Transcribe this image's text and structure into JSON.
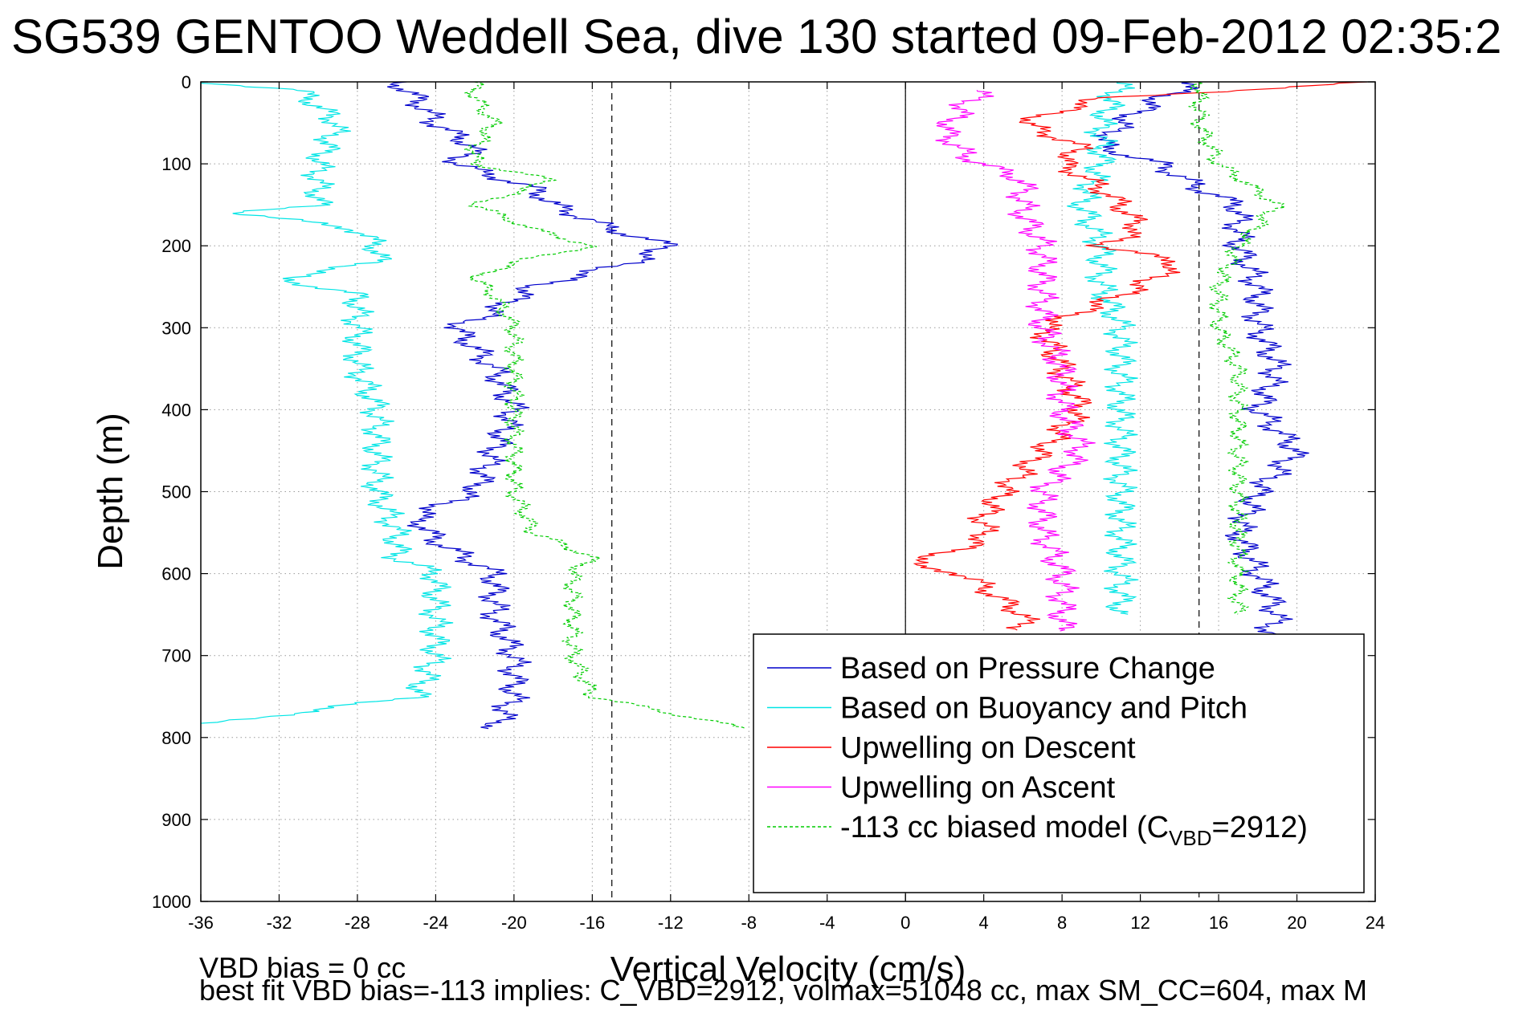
{
  "chart_data": {
    "type": "line",
    "title": "SG539 GENTOO Weddell Sea, dive 130 started 09-Feb-2012 02:35:2",
    "xlabel": "Vertical Velocity (cm/s)",
    "ylabel": "Depth (m)",
    "xlim": [
      -36,
      24
    ],
    "ylim": [
      0,
      1000
    ],
    "y_reversed": true,
    "grid": true,
    "xticks": [
      "-36",
      "-32",
      "-28",
      "-24",
      "-20",
      "-16",
      "-12",
      "-8",
      "-4",
      "0",
      "4",
      "8",
      "12",
      "16",
      "20",
      "24"
    ],
    "yticks": [
      "0",
      "100",
      "200",
      "300",
      "400",
      "500",
      "600",
      "700",
      "800",
      "900",
      "1000"
    ],
    "reference_lines": {
      "vertical_solid": 0,
      "vertical_dashed": [
        -15,
        15
      ]
    },
    "legend_position": "lower-right",
    "legend": [
      {
        "label": "Based on Pressure Change",
        "color": "#0000cc",
        "dashed": false
      },
      {
        "label": "Based on Buoyancy and Pitch",
        "color": "#00e5e5",
        "dashed": false
      },
      {
        "label": "Upwelling on Descent",
        "color": "#ff0000",
        "dashed": false
      },
      {
        "label": "Upwelling on Ascent",
        "color": "#ff00ff",
        "dashed": false
      },
      {
        "label_main": "-113 cc biased model (C",
        "label_sub": "VBD",
        "label_tail": "=2912)",
        "color": "#00cc00",
        "dashed": true
      }
    ],
    "series": [
      {
        "name": "Based on Pressure Change",
        "color": "#0000cc",
        "profiles": [
          {
            "depth": [
              0,
              20,
              50,
              80,
              100,
              130,
              150,
              180,
              200,
              220,
              250,
              280,
              300,
              350,
              400,
              450,
              500,
              530,
              560,
              600,
              650,
              700,
              750,
              790
            ],
            "x": [
              -26,
              -25,
              -24,
              -22,
              -23,
              -19,
              -18,
              -15,
              -12,
              -14,
              -19,
              -21,
              -23,
              -21,
              -20,
              -21,
              -22,
              -25,
              -24,
              -21,
              -21,
              -20,
              -20,
              -21
            ]
          },
          {
            "depth": [
              0,
              20,
              50,
              80,
              100,
              130,
              150,
              200,
              250,
              300,
              350,
              400,
              450,
              500,
              550,
              600,
              650,
              700
            ],
            "x": [
              15,
              13,
              11,
              10,
              13,
              15,
              17,
              17,
              18,
              18,
              19,
              18,
              20,
              18,
              17,
              18,
              19,
              18
            ]
          }
        ]
      },
      {
        "name": "Based on Buoyancy and Pitch",
        "color": "#00e5e5",
        "profiles": [
          {
            "depth": [
              0,
              10,
              50,
              100,
              150,
              160,
              180,
              200,
              220,
              240,
              260,
              300,
              350,
              400,
              450,
              500,
              550,
              580,
              600,
              650,
              700,
              750,
              785
            ],
            "x": [
              -36,
              -31,
              -29,
              -30,
              -30,
              -34,
              -28,
              -27,
              -27,
              -32,
              -28,
              -28,
              -28,
              -27,
              -27,
              -27,
              -26,
              -26,
              -24,
              -24,
              -24,
              -25,
              -36
            ]
          },
          {
            "depth": [
              0,
              50,
              100,
              150,
              200,
              250,
              300,
              350,
              400,
              450,
              500,
              550,
              600,
              650
            ],
            "x": [
              11,
              10,
              10,
              9,
              10,
              10,
              11,
              11,
              11,
              11,
              11,
              11,
              11,
              11
            ]
          }
        ]
      },
      {
        "name": "Upwelling on Descent",
        "color": "#ff0000",
        "profiles": [
          {
            "depth": [
              0,
              20,
              50,
              80,
              100,
              130,
              150,
              180,
              200,
              220,
              250,
              280,
              300,
              350,
              400,
              450,
              500,
              530,
              560,
              590,
              600,
              650,
              670
            ],
            "x": [
              24,
              10,
              6,
              9,
              8,
              10,
              11,
              12,
              10,
              14,
              12,
              9,
              7,
              8,
              9,
              7,
              5,
              4,
              4,
              0,
              3,
              6,
              6
            ]
          }
        ]
      },
      {
        "name": "Upwelling on Ascent",
        "color": "#ff00ff",
        "profiles": [
          {
            "depth": [
              10,
              30,
              60,
              90,
              120,
              160,
              200,
              250,
              300,
              350,
              400,
              450,
              500,
              550,
              600,
              650,
              670
            ],
            "x": [
              4,
              3,
              2,
              3,
              6,
              6,
              7,
              7,
              7,
              8,
              8,
              9,
              7,
              7,
              8,
              8,
              8
            ]
          }
        ]
      },
      {
        "name": "-113 cc biased model",
        "color": "#00cc00",
        "dashed": true,
        "profiles": [
          {
            "depth": [
              0,
              20,
              50,
              80,
              100,
              120,
              150,
              180,
              200,
              220,
              240,
              260,
              300,
              350,
              400,
              450,
              500,
              550,
              580,
              600,
              650,
              700,
              750,
              790
            ],
            "x": [
              -22,
              -22,
              -21,
              -22,
              -22,
              -18,
              -22,
              -19,
              -16,
              -20,
              -22,
              -21,
              -20,
              -20,
              -20,
              -20,
              -20,
              -19,
              -16,
              -17,
              -17,
              -17,
              -16,
              -8
            ]
          },
          {
            "depth": [
              0,
              50,
              100,
              150,
              200,
              250,
              300,
              350,
              400,
              450,
              500,
              550,
              600,
              650
            ],
            "x": [
              15,
              15,
              16,
              19,
              17,
              16,
              16,
              17,
              17,
              17,
              17,
              17,
              17,
              17
            ]
          }
        ]
      }
    ]
  },
  "notes": {
    "line1": "VBD bias = 0 cc",
    "line2": "best fit VBD bias=-113 implies: C_VBD=2912, volmax=51048 cc, max SM_CC=604, max M"
  }
}
